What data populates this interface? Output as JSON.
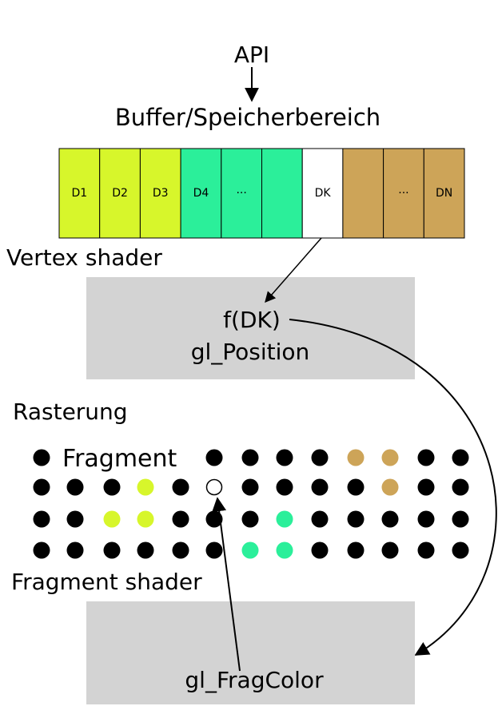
{
  "api_label": "API",
  "buffer_title": "Buffer/Speicherbereich",
  "buffer": {
    "colors": {
      "lime": "#d7f62b",
      "green": "#2bef9a",
      "white": "#ffffff",
      "tan": "#cda458"
    },
    "cells": [
      {
        "label": "D1",
        "color": "lime"
      },
      {
        "label": "D2",
        "color": "lime"
      },
      {
        "label": "D3",
        "color": "lime"
      },
      {
        "label": "D4",
        "color": "green"
      },
      {
        "label": "···",
        "color": "green"
      },
      {
        "label": "",
        "color": "green"
      },
      {
        "label": "DK",
        "color": "white"
      },
      {
        "label": "",
        "color": "tan"
      },
      {
        "label": "···",
        "color": "tan"
      },
      {
        "label": "DN",
        "color": "tan"
      }
    ]
  },
  "vertex_shader_label": "Vertex shader",
  "vertex_box": {
    "line1": "f(DK)",
    "line2": "gl_Position",
    "color": "#d3d3d3"
  },
  "rasterung_label": "Rasterung",
  "fragment_label": "Fragment",
  "fragment_label_color": "#d7f62b",
  "dot_grid": {
    "rows": [
      [
        "black",
        "skip",
        "skip",
        "skip",
        "skip",
        "black",
        "black",
        "black",
        "black",
        "tan",
        "tan",
        "black",
        "black"
      ],
      [
        "black",
        "black",
        "black",
        "lime",
        "black",
        "hollow",
        "black",
        "black",
        "black",
        "black",
        "tan",
        "black",
        "black"
      ],
      [
        "black",
        "black",
        "lime",
        "lime",
        "black",
        "black",
        "black",
        "green",
        "black",
        "black",
        "black",
        "black",
        "black"
      ],
      [
        "black",
        "black",
        "black",
        "black",
        "black",
        "black",
        "green",
        "green",
        "black",
        "black",
        "black",
        "black",
        "black"
      ]
    ],
    "colors": {
      "black": "#000000",
      "lime": "#d7f62b",
      "green": "#2bef9a",
      "tan": "#cda458"
    }
  },
  "fragment_shader_label": "Fragment shader",
  "fragment_box": {
    "line1": "gl_FragColor",
    "color": "#d3d3d3"
  }
}
